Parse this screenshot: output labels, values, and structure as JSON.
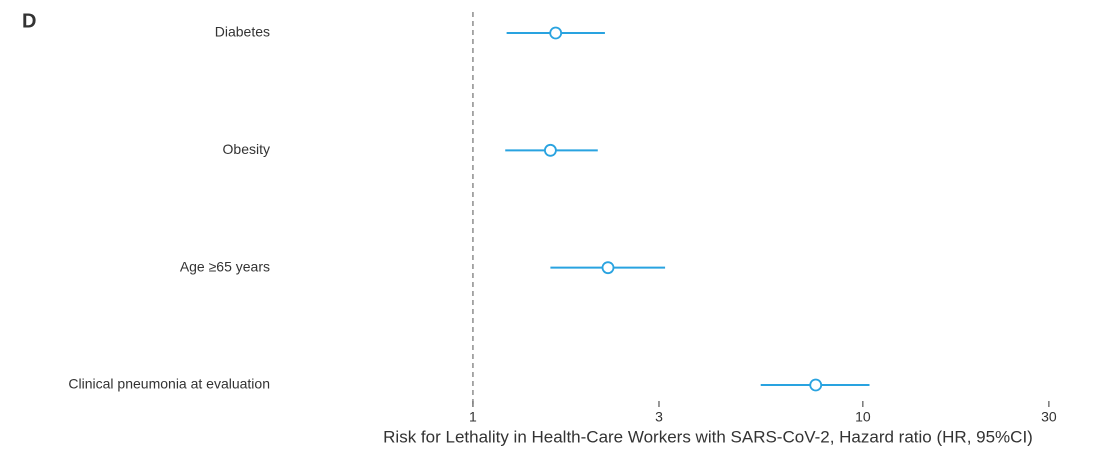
{
  "chart_data": {
    "type": "forest",
    "title": "D",
    "xlabel": "Risk for Lethality in Health-Care Workers with SARS-CoV-2, Hazard ratio (HR, 95%CI)",
    "categories": [
      "Diabetes",
      "Obesity",
      "Age ≥65 years",
      "Clinical pneumonia at evaluation"
    ],
    "values": [
      1.63,
      1.58,
      2.22,
      7.57
    ],
    "lower": [
      1.22,
      1.21,
      1.58,
      5.47
    ],
    "upper": [
      2.18,
      2.09,
      3.11,
      10.4
    ],
    "color": "#29a3e0",
    "xscale": "log",
    "xlim": [
      0.32,
      35
    ],
    "xticks": [
      1,
      3,
      10,
      30
    ],
    "reference_line": 1
  }
}
